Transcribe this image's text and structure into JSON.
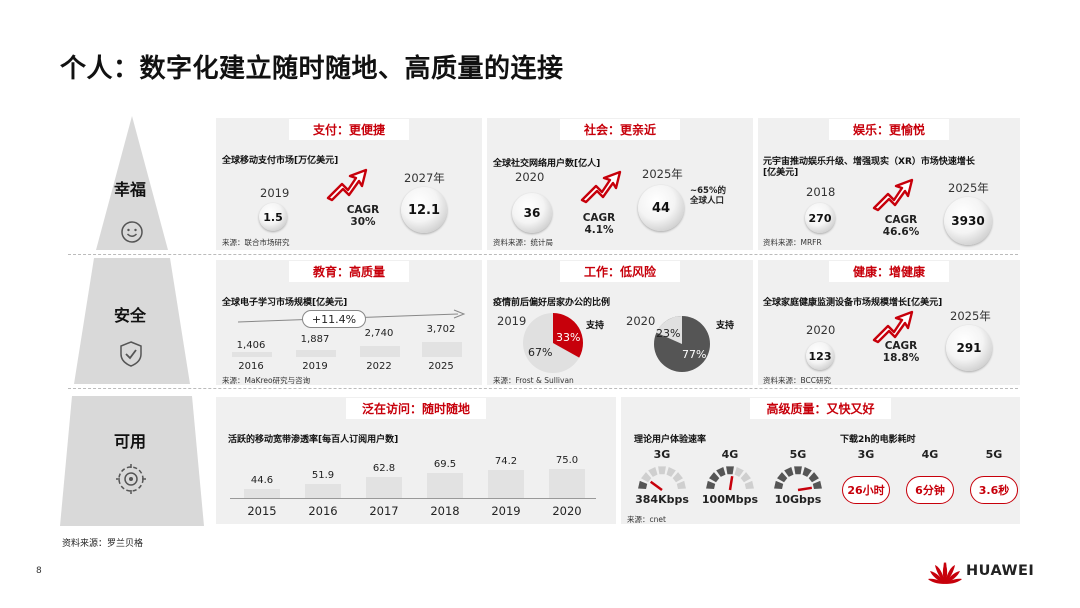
{
  "title": "个人：数字化建立随时随地、高质量的连接",
  "levels": [
    {
      "label": "幸福",
      "icon": "smiley-icon"
    },
    {
      "label": "安全",
      "icon": "shield-check-icon"
    },
    {
      "label": "可用",
      "icon": "gear-network-icon"
    }
  ],
  "payment": {
    "header": "支付：更便捷",
    "subtitle": "全球移动支付市场[万亿美元]",
    "y1": "2019",
    "v1": "1.5",
    "y2": "2027年",
    "v2": "12.1",
    "cagr_label": "CAGR",
    "cagr": "30%",
    "source": "来源：联合市场研究"
  },
  "social": {
    "header": "社会：更亲近",
    "subtitle": "全球社交网络用户数[亿人]",
    "y1": "2020",
    "v1": "36",
    "y2": "2025年",
    "v2": "44",
    "cagr_label": "CAGR",
    "cagr": "4.1%",
    "note1": "~65%的",
    "note2": "全球人口",
    "source": "资料来源：统计局"
  },
  "entertainment": {
    "header": "娱乐：更愉悦",
    "subtitle1": "元宇宙推动娱乐升级、增强现实（XR）市场快速增长",
    "subtitle2": "[亿美元]",
    "y1": "2018",
    "v1": "270",
    "y2": "2025年",
    "v2": "3930",
    "cagr_label": "CAGR",
    "cagr": "46.6%",
    "source": "资料来源：MRFR"
  },
  "education": {
    "header": "教育：高质量",
    "subtitle": "全球电子学习市场规模[亿美元]",
    "growth": "+11.4%",
    "years": [
      "2016",
      "2019",
      "2022",
      "2025"
    ],
    "values": [
      "1,406",
      "1,887",
      "2,740",
      "3,702"
    ],
    "source": "来源：MaKreo研究与咨询"
  },
  "work": {
    "header": "工作：低风险",
    "subtitle": "疫情前后偏好居家办公的比例",
    "y1": "2019",
    "y2": "2020",
    "pie1_support": "33%",
    "pie1_other": "67%",
    "pie2_support": "77%",
    "pie2_other": "23%",
    "support_label": "支持",
    "source": "来源：Frost & Sullivan"
  },
  "health": {
    "header": "健康：增健康",
    "subtitle": "全球家庭健康监测设备市场规模增长[亿美元]",
    "y1": "2020",
    "v1": "123",
    "y2": "2025年",
    "v2": "291",
    "cagr_label": "CAGR",
    "cagr": "18.8%",
    "source": "资料来源：BCC研究"
  },
  "access": {
    "header": "泛在访问：随时随地",
    "subtitle": "活跃的移动宽带渗透率[每百人订阅用户数]",
    "chart_data": {
      "type": "bar",
      "categories": [
        "2015",
        "2016",
        "2017",
        "2018",
        "2019",
        "2020"
      ],
      "values": [
        44.6,
        51.9,
        62.8,
        69.5,
        74.2,
        75.0
      ],
      "value_labels": [
        "44.6",
        "51.9",
        "62.8",
        "69.5",
        "74.2",
        "75.0"
      ]
    }
  },
  "quality": {
    "header": "高级质量：又快又好",
    "speed_title": "理论用户体验速率",
    "download_title": "下载2h的电影耗时",
    "speeds": [
      {
        "net": "3G",
        "rate": "384Kbps",
        "level": 0.2
      },
      {
        "net": "4G",
        "rate": "100Mbps",
        "level": 0.55
      },
      {
        "net": "5G",
        "rate": "10Gbps",
        "level": 0.95
      }
    ],
    "downloads": [
      {
        "net": "3G",
        "time": "26小时"
      },
      {
        "net": "4G",
        "time": "6分钟"
      },
      {
        "net": "5G",
        "time": "3.6秒"
      }
    ],
    "source": "来源：cnet"
  },
  "footer": {
    "source": "资料来源：罗兰贝格",
    "page": "8",
    "brand": "HUAWEI"
  },
  "colors": {
    "accent": "#c7000b",
    "panel": "#f0f0f0",
    "pyramid": "#d9d9d9",
    "dark_gray": "#555555"
  }
}
